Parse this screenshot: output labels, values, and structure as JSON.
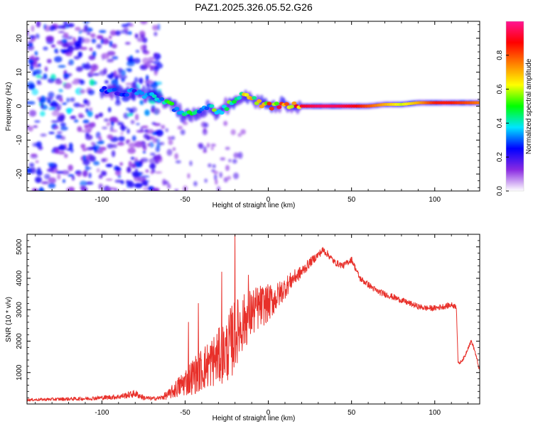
{
  "title": "PAZ1.2025.326.05.52.G26",
  "colors": {
    "snr_line": "#e8302a",
    "axis": "#000000",
    "background": "#ffffff"
  },
  "chart_data": [
    {
      "type": "heatmap",
      "name": "spectrogram",
      "xlabel": "Height of straight line (km)",
      "ylabel": "Frequency (Hz)",
      "xlim": [
        -145,
        127
      ],
      "ylim": [
        -25,
        25
      ],
      "x_ticks": [
        -100,
        -50,
        0,
        50,
        100
      ],
      "y_ticks": [
        -20,
        -10,
        0,
        10,
        20
      ],
      "colorbar": {
        "label": "Normalized spectral amplitude",
        "range": [
          0.0,
          1.0
        ],
        "ticks": [
          0.0,
          0.2,
          0.4,
          0.6,
          0.8
        ],
        "tick_labels": [
          "0.0",
          "0.2",
          "0.4",
          "0.6",
          "0.8"
        ],
        "colormap": [
          "#ffffff",
          "#8a2be2",
          "#0000ff",
          "#00e5ff",
          "#00ff00",
          "#ffff00",
          "#ff8000",
          "#ff0000",
          "#ff1493"
        ]
      },
      "ridge": {
        "x": [
          -100,
          -90,
          -80,
          -70,
          -65,
          -60,
          -55,
          -50,
          -45,
          -40,
          -35,
          -30,
          -25,
          -20,
          -15,
          -10,
          -5,
          0,
          5,
          10,
          15,
          20,
          30,
          40,
          50,
          60,
          70,
          80,
          90,
          100,
          110,
          120,
          127
        ],
        "frequency": [
          5,
          4,
          4,
          3,
          2,
          1,
          -1,
          -3,
          -2,
          -1,
          0,
          -2,
          0,
          2,
          3,
          2,
          1,
          0,
          0,
          1,
          0,
          0,
          0,
          0,
          0,
          0,
          0.5,
          0.5,
          1,
          1,
          1,
          1,
          1
        ],
        "amplitude": [
          0.3,
          0.3,
          0.35,
          0.4,
          0.45,
          0.5,
          0.45,
          0.45,
          0.5,
          0.45,
          0.5,
          0.55,
          0.5,
          0.6,
          0.65,
          0.7,
          0.75,
          0.8,
          0.85,
          0.8,
          0.85,
          0.9,
          0.95,
          0.95,
          0.9,
          0.8,
          0.7,
          0.6,
          0.7,
          0.85,
          0.85,
          0.8,
          0.75
        ]
      },
      "scatter_region_x": [
        -145,
        -65
      ]
    },
    {
      "type": "line",
      "name": "snr",
      "xlabel": "Height of straight line (km)",
      "ylabel": "SNR (10 * v/v)",
      "xlim": [
        -145,
        127
      ],
      "ylim": [
        0,
        5400
      ],
      "x_ticks": [
        -100,
        -50,
        0,
        50,
        100
      ],
      "y_ticks": [
        1000,
        2000,
        3000,
        4000,
        5000
      ],
      "series": [
        {
          "name": "SNR",
          "x": [
            -145,
            -130,
            -110,
            -90,
            -80,
            -75,
            -70,
            -65,
            -60,
            -55,
            -50,
            -45,
            -40,
            -35,
            -30,
            -25,
            -22,
            -20,
            -18,
            -15,
            -10,
            -5,
            0,
            5,
            10,
            15,
            20,
            25,
            30,
            33,
            36,
            40,
            45,
            50,
            55,
            60,
            65,
            70,
            75,
            80,
            85,
            90,
            95,
            100,
            105,
            110,
            113,
            114,
            115,
            118,
            120,
            122,
            124,
            127
          ],
          "y": [
            130,
            150,
            170,
            230,
            330,
            200,
            170,
            190,
            300,
            500,
            700,
            900,
            1100,
            1300,
            1500,
            1700,
            2000,
            2200,
            2400,
            2600,
            2900,
            3100,
            3200,
            3400,
            3700,
            4000,
            4200,
            4500,
            4750,
            4900,
            4750,
            4500,
            4400,
            4600,
            4000,
            3800,
            3600,
            3500,
            3400,
            3300,
            3200,
            3100,
            3050,
            3050,
            3100,
            3150,
            3100,
            1300,
            1300,
            1500,
            1800,
            2000,
            1700,
            1050
          ],
          "noise_amplitude": [
            40,
            50,
            60,
            80,
            120,
            80,
            60,
            70,
            150,
            300,
            450,
            600,
            700,
            800,
            900,
            1000,
            1200,
            1100,
            1000,
            900,
            800,
            700,
            600,
            450,
            350,
            250,
            200,
            150,
            120,
            120,
            110,
            100,
            100,
            100,
            100,
            100,
            100,
            100,
            100,
            90,
            90,
            90,
            90,
            90,
            90,
            90,
            80,
            40,
            40,
            60,
            60,
            60,
            60,
            60
          ],
          "spikes": [
            {
              "x": -20,
              "y": 5400
            },
            {
              "x": -28,
              "y": 4200
            },
            {
              "x": -42,
              "y": 3200
            },
            {
              "x": -48,
              "y": 2600
            },
            {
              "x": -12,
              "y": 4100
            }
          ]
        }
      ]
    }
  ]
}
